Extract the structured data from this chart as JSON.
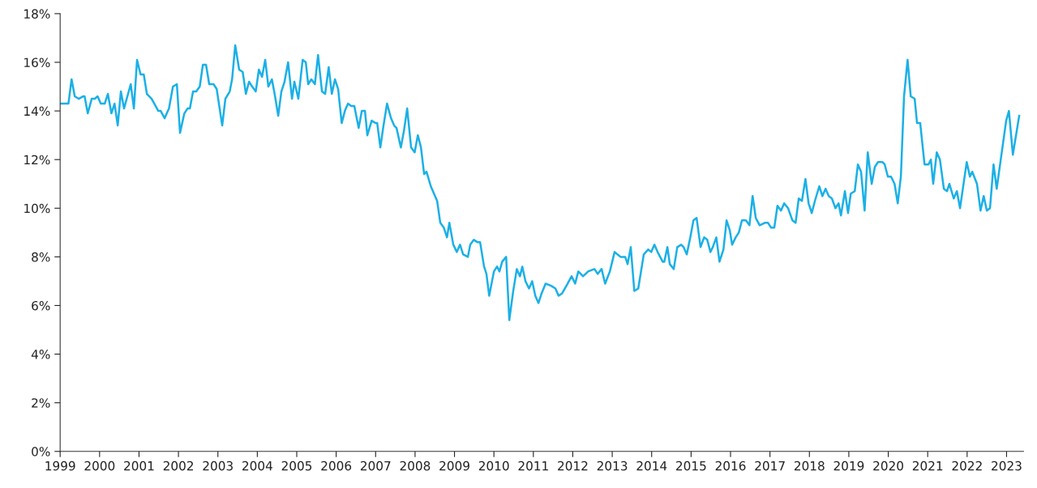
{
  "chart_data": {
    "type": "line",
    "x": [
      1999.0,
      1999.12,
      1999.21,
      1999.29,
      1999.37,
      1999.47,
      1999.58,
      1999.62,
      1999.7,
      1999.8,
      1999.88,
      1999.95,
      2000.03,
      2000.13,
      2000.21,
      2000.3,
      2000.38,
      2000.46,
      2000.54,
      2000.62,
      2000.79,
      2000.87,
      2000.95,
      2001.04,
      2001.12,
      2001.2,
      2001.32,
      2001.49,
      2001.55,
      2001.65,
      2001.76,
      2001.86,
      2001.96,
      2002.04,
      2002.15,
      2002.23,
      2002.29,
      2002.37,
      2002.45,
      2002.54,
      2002.62,
      2002.7,
      2002.78,
      2002.89,
      2002.97,
      2003.11,
      2003.19,
      2003.3,
      2003.36,
      2003.44,
      2003.54,
      2003.63,
      2003.71,
      2003.79,
      2003.87,
      2003.96,
      2004.04,
      2004.12,
      2004.2,
      2004.28,
      2004.37,
      2004.45,
      2004.53,
      2004.61,
      2004.69,
      2004.78,
      2004.88,
      2004.94,
      2005.04,
      2005.15,
      2005.23,
      2005.29,
      2005.37,
      2005.46,
      2005.54,
      2005.64,
      2005.72,
      2005.81,
      2005.89,
      2005.97,
      2006.05,
      2006.14,
      2006.22,
      2006.3,
      2006.38,
      2006.46,
      2006.57,
      2006.65,
      2006.73,
      2006.79,
      2006.9,
      2007.0,
      2007.04,
      2007.12,
      2007.2,
      2007.29,
      2007.39,
      2007.47,
      2007.53,
      2007.64,
      2007.72,
      2007.8,
      2007.9,
      2007.99,
      2008.07,
      2008.15,
      2008.23,
      2008.29,
      2008.4,
      2008.48,
      2008.56,
      2008.64,
      2008.73,
      2008.81,
      2008.87,
      2008.97,
      2009.06,
      2009.14,
      2009.22,
      2009.34,
      2009.4,
      2009.49,
      2009.59,
      2009.65,
      2009.75,
      2009.81,
      2009.88,
      2010.0,
      2010.08,
      2010.14,
      2010.21,
      2010.31,
      2010.39,
      2010.49,
      2010.58,
      2010.66,
      2010.72,
      2010.8,
      2010.89,
      2010.97,
      2011.05,
      2011.13,
      2011.21,
      2011.31,
      2011.46,
      2011.56,
      2011.64,
      2011.73,
      2011.87,
      2011.97,
      2012.06,
      2012.14,
      2012.26,
      2012.39,
      2012.55,
      2012.63,
      2012.73,
      2012.82,
      2012.94,
      2013.06,
      2013.21,
      2013.33,
      2013.39,
      2013.47,
      2013.56,
      2013.66,
      2013.8,
      2013.91,
      2013.99,
      2014.07,
      2014.15,
      2014.28,
      2014.32,
      2014.4,
      2014.46,
      2014.56,
      2014.65,
      2014.75,
      2014.81,
      2014.89,
      2014.98,
      2015.06,
      2015.14,
      2015.24,
      2015.33,
      2015.41,
      2015.49,
      2015.55,
      2015.64,
      2015.72,
      2015.82,
      2015.9,
      2015.98,
      2016.04,
      2016.13,
      2016.21,
      2016.29,
      2016.39,
      2016.48,
      2016.56,
      2016.64,
      2016.74,
      2016.87,
      2016.95,
      2017.03,
      2017.11,
      2017.19,
      2017.28,
      2017.36,
      2017.46,
      2017.57,
      2017.65,
      2017.73,
      2017.81,
      2017.9,
      2017.98,
      2018.06,
      2018.14,
      2018.25,
      2018.33,
      2018.41,
      2018.49,
      2018.57,
      2018.66,
      2018.74,
      2018.8,
      2018.9,
      2018.98,
      2019.05,
      2019.15,
      2019.23,
      2019.31,
      2019.4,
      2019.48,
      2019.58,
      2019.66,
      2019.74,
      2019.85,
      2019.91,
      2019.99,
      2020.07,
      2020.16,
      2020.24,
      2020.32,
      2020.4,
      2020.49,
      2020.57,
      2020.67,
      2020.73,
      2020.81,
      2020.92,
      2021.02,
      2021.08,
      2021.14,
      2021.23,
      2021.31,
      2021.41,
      2021.49,
      2021.55,
      2021.66,
      2021.74,
      2021.82,
      2021.99,
      2022.07,
      2022.13,
      2022.25,
      2022.34,
      2022.42,
      2022.5,
      2022.58,
      2022.67,
      2022.75,
      2022.87,
      2022.99,
      2023.06,
      2023.16,
      2023.32
    ],
    "series": [
      {
        "color": "#1ab0e6",
        "values": [
          14.3,
          14.3,
          14.3,
          15.3,
          14.6,
          14.5,
          14.6,
          14.6,
          13.9,
          14.5,
          14.5,
          14.6,
          14.3,
          14.3,
          14.7,
          13.9,
          14.3,
          13.4,
          14.8,
          14.1,
          15.1,
          14.1,
          16.1,
          15.5,
          15.5,
          14.7,
          14.5,
          14.0,
          14.0,
          13.7,
          14.1,
          15.0,
          15.1,
          13.1,
          13.9,
          14.1,
          14.1,
          14.8,
          14.8,
          15.0,
          15.9,
          15.9,
          15.1,
          15.1,
          14.9,
          13.4,
          14.5,
          14.8,
          15.3,
          16.7,
          15.7,
          15.6,
          14.7,
          15.2,
          15.0,
          14.8,
          15.7,
          15.4,
          16.1,
          15.0,
          15.3,
          14.6,
          13.8,
          14.8,
          15.2,
          16.0,
          14.5,
          15.2,
          14.5,
          16.1,
          16.0,
          15.1,
          15.3,
          15.1,
          16.3,
          14.8,
          14.7,
          15.8,
          14.7,
          15.3,
          14.9,
          13.5,
          14.0,
          14.3,
          14.2,
          14.2,
          13.3,
          14.0,
          14.0,
          13.0,
          13.6,
          13.5,
          13.5,
          12.5,
          13.4,
          14.3,
          13.7,
          13.4,
          13.3,
          12.5,
          13.2,
          14.1,
          12.5,
          12.3,
          13.0,
          12.5,
          11.4,
          11.5,
          10.9,
          10.6,
          10.3,
          9.4,
          9.2,
          8.8,
          9.4,
          8.5,
          8.2,
          8.5,
          8.1,
          8.0,
          8.5,
          8.7,
          8.6,
          8.6,
          7.6,
          7.3,
          6.4,
          7.4,
          7.6,
          7.4,
          7.8,
          8.0,
          5.4,
          6.6,
          7.5,
          7.2,
          7.6,
          7.0,
          6.7,
          7.0,
          6.4,
          6.1,
          6.5,
          6.9,
          6.8,
          6.7,
          6.4,
          6.5,
          6.9,
          7.2,
          6.9,
          7.4,
          7.2,
          7.4,
          7.5,
          7.3,
          7.5,
          6.9,
          7.4,
          8.2,
          8.0,
          8.0,
          7.7,
          8.4,
          6.6,
          6.7,
          8.1,
          8.3,
          8.2,
          8.5,
          8.2,
          7.8,
          7.8,
          8.4,
          7.7,
          7.5,
          8.4,
          8.5,
          8.4,
          8.1,
          8.8,
          9.5,
          9.6,
          8.4,
          8.8,
          8.7,
          8.2,
          8.4,
          8.8,
          7.8,
          8.3,
          9.5,
          9.1,
          8.5,
          8.8,
          9.0,
          9.5,
          9.5,
          9.3,
          10.5,
          9.6,
          9.3,
          9.4,
          9.4,
          9.2,
          9.2,
          10.1,
          9.9,
          10.2,
          10.0,
          9.5,
          9.4,
          10.4,
          10.3,
          11.2,
          10.2,
          9.8,
          10.3,
          10.9,
          10.5,
          10.8,
          10.5,
          10.4,
          10.0,
          10.2,
          9.7,
          10.7,
          9.8,
          10.6,
          10.7,
          11.8,
          11.5,
          9.9,
          12.3,
          11.0,
          11.7,
          11.9,
          11.9,
          11.8,
          11.3,
          11.3,
          11.0,
          10.2,
          11.3,
          14.6,
          16.1,
          14.6,
          14.5,
          13.5,
          13.5,
          11.8,
          11.8,
          12.0,
          11.0,
          12.3,
          12.0,
          10.8,
          10.7,
          11.0,
          10.4,
          10.7,
          10.0,
          11.9,
          11.3,
          11.5,
          11.0,
          9.9,
          10.5,
          9.9,
          10.0,
          11.8,
          10.8,
          12.2,
          13.6,
          14.0,
          12.2,
          13.8
        ]
      }
    ],
    "xlim": [
      1999,
      2023.43
    ],
    "xticks": [
      1999,
      2000,
      2001,
      2002,
      2003,
      2004,
      2005,
      2006,
      2007,
      2008,
      2009,
      2010,
      2011,
      2012,
      2013,
      2014,
      2015,
      2016,
      2017,
      2018,
      2019,
      2020,
      2021,
      2022,
      2023
    ],
    "ylim": [
      0,
      18
    ],
    "yticks": [
      {
        "value": 0,
        "label": "0%"
      },
      {
        "value": 2,
        "label": "2%"
      },
      {
        "value": 4,
        "label": "4%"
      },
      {
        "value": 6,
        "label": "6%"
      },
      {
        "value": 8,
        "label": "8%"
      },
      {
        "value": 10,
        "label": "10%"
      },
      {
        "value": 12,
        "label": "12%"
      },
      {
        "value": 14,
        "label": "14%"
      },
      {
        "value": 16,
        "label": "16%"
      },
      {
        "value": 18,
        "label": "18%"
      }
    ],
    "grid": false
  }
}
